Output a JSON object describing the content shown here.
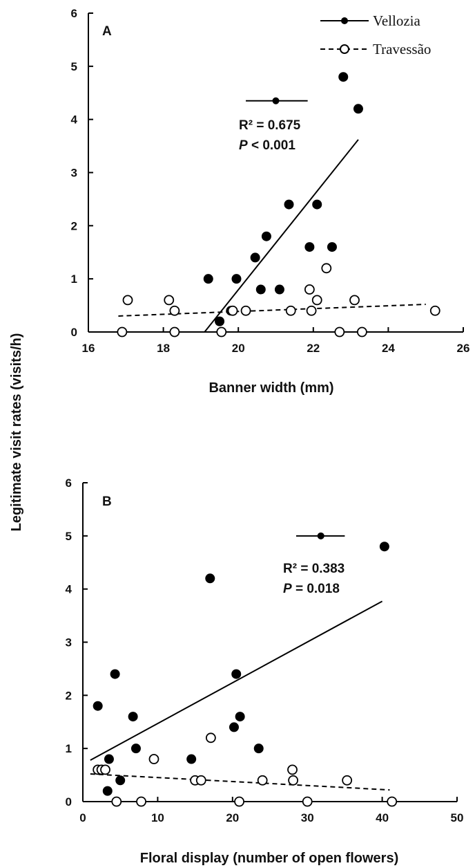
{
  "shared": {
    "ylabel": "Legitimate visit rates (visits/h)"
  },
  "legend": {
    "items": [
      {
        "label": "Vellozia",
        "style": "filled",
        "line": "solid"
      },
      {
        "label": "Travessão",
        "style": "open",
        "line": "dashed"
      }
    ],
    "placement": "top-right"
  },
  "chart_data": [
    {
      "type": "scatter",
      "panel": "A",
      "xlabel": "Banner width (mm)",
      "xlim": [
        16,
        26
      ],
      "ylim": [
        0,
        6
      ],
      "xticks": [
        "16",
        "18",
        "20",
        "22",
        "24",
        "26"
      ],
      "yticks": [
        "0",
        "1",
        "2",
        "3",
        "4",
        "5",
        "6"
      ],
      "series": [
        {
          "name": "Vellozia",
          "marker": "filled",
          "points": [
            [
              19.2,
              1.0
            ],
            [
              19.5,
              0.2
            ],
            [
              19.8,
              0.4
            ],
            [
              19.95,
              1.0
            ],
            [
              20.45,
              1.4
            ],
            [
              20.6,
              0.8
            ],
            [
              20.75,
              1.8
            ],
            [
              21.1,
              0.8
            ],
            [
              21.35,
              2.4
            ],
            [
              21.9,
              1.6
            ],
            [
              22.1,
              2.4
            ],
            [
              22.5,
              1.6
            ],
            [
              22.8,
              4.8
            ],
            [
              23.2,
              4.2
            ]
          ],
          "fit": {
            "x": [
              19.1,
              23.2
            ],
            "y": [
              0.0,
              3.62
            ],
            "line": "solid"
          },
          "mean_point": {
            "x": 21.0,
            "y": 4.35,
            "xerr_low": 20.2,
            "xerr_high": 21.85
          }
        },
        {
          "name": "Travessão",
          "marker": "open",
          "points": [
            [
              16.9,
              0.0
            ],
            [
              17.05,
              0.6
            ],
            [
              18.15,
              0.6
            ],
            [
              18.3,
              0.4
            ],
            [
              18.3,
              0.0
            ],
            [
              19.55,
              0.0
            ],
            [
              19.85,
              0.4
            ],
            [
              20.2,
              0.4
            ],
            [
              21.4,
              0.4
            ],
            [
              21.9,
              0.8
            ],
            [
              21.95,
              0.4
            ],
            [
              22.1,
              0.6
            ],
            [
              22.35,
              1.2
            ],
            [
              22.7,
              0.0
            ],
            [
              23.1,
              0.6
            ],
            [
              23.3,
              0.0
            ],
            [
              25.25,
              0.4
            ]
          ],
          "fit": {
            "x": [
              16.8,
              25.0
            ],
            "y": [
              0.3,
              0.52
            ],
            "line": "dashed"
          }
        }
      ],
      "annotations": {
        "r2": "R² = 0.675",
        "p_italic": "P",
        "p_rest": " < 0.001"
      }
    },
    {
      "type": "scatter",
      "panel": "B",
      "xlabel": "Floral display (number of open flowers)",
      "xlim": [
        0,
        50
      ],
      "ylim": [
        0,
        6
      ],
      "xticks": [
        "0",
        "10",
        "20",
        "30",
        "40",
        "50"
      ],
      "yticks": [
        "0",
        "1",
        "2",
        "3",
        "4",
        "5",
        "6"
      ],
      "series": [
        {
          "name": "Vellozia",
          "marker": "filled",
          "points": [
            [
              2,
              1.8
            ],
            [
              3.3,
              0.2
            ],
            [
              3.5,
              0.8
            ],
            [
              4.3,
              2.4
            ],
            [
              5,
              0.4
            ],
            [
              6.7,
              1.6
            ],
            [
              7.1,
              1.0
            ],
            [
              14.5,
              0.8
            ],
            [
              17.0,
              4.2
            ],
            [
              20.2,
              1.4
            ],
            [
              20.5,
              2.4
            ],
            [
              21.0,
              1.6
            ],
            [
              23.5,
              1.0
            ],
            [
              40.3,
              4.8
            ]
          ],
          "fit": {
            "x": [
              1.0,
              40.0
            ],
            "y": [
              0.78,
              3.77
            ],
            "line": "solid"
          },
          "mean_point": {
            "x": 31.8,
            "y": 5.0,
            "xerr_low": 28.5,
            "xerr_high": 35.0
          }
        },
        {
          "name": "Travessão",
          "marker": "open",
          "points": [
            [
              2.0,
              0.6
            ],
            [
              2.5,
              0.6
            ],
            [
              3.0,
              0.6
            ],
            [
              4.5,
              0.0
            ],
            [
              7.8,
              0.0
            ],
            [
              9.5,
              0.8
            ],
            [
              15.0,
              0.4
            ],
            [
              15.8,
              0.4
            ],
            [
              17.1,
              1.2
            ],
            [
              20.9,
              0.0
            ],
            [
              24.0,
              0.4
            ],
            [
              28.0,
              0.6
            ],
            [
              28.1,
              0.4
            ],
            [
              30.0,
              0.0
            ],
            [
              35.3,
              0.4
            ],
            [
              41.3,
              0.0
            ]
          ],
          "fit": {
            "x": [
              1.0,
              41.0
            ],
            "y": [
              0.52,
              0.22
            ],
            "line": "dashed"
          }
        }
      ],
      "annotations": {
        "r2": "R² = 0.383",
        "p_italic": "P",
        "p_rest": " = 0.018"
      }
    }
  ]
}
